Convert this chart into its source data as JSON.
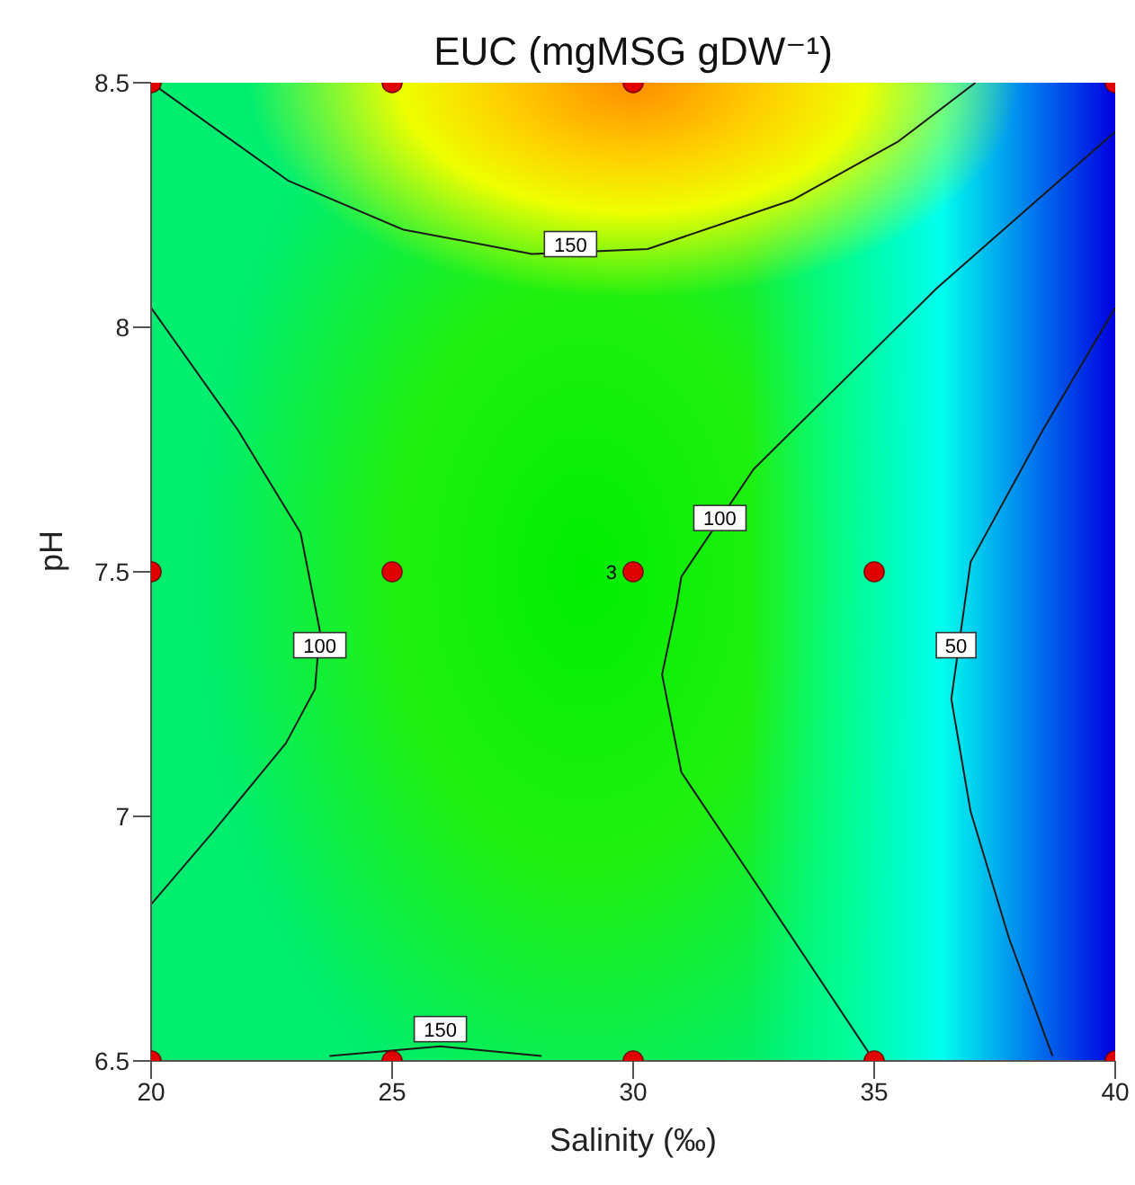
{
  "chart_data": {
    "type": "line",
    "title": "EUC (mgMSG gDW⁻¹)",
    "xlabel": "Salinity (‰)",
    "ylabel": "pH",
    "xlim": [
      20,
      40
    ],
    "ylim": [
      6.5,
      8.5
    ],
    "xticks": [
      20,
      25,
      30,
      35,
      40
    ],
    "yticks": [
      6.5,
      7,
      7.5,
      8,
      8.5
    ],
    "line_style": "solid",
    "series": [
      {
        "color": "#1a1a1a",
        "x": [
          20,
          22.84,
          25.22,
          27.9,
          30.3,
          33.3,
          35.5,
          37.1
        ],
        "values": [
          8.5,
          8.3,
          8.2,
          8.15,
          8.16,
          8.26,
          8.38,
          8.5
        ]
      },
      {
        "color": "#1a1a1a",
        "x": [
          20,
          21.8,
          23.1,
          23.5,
          23.4,
          22.8,
          21.3,
          20
        ],
        "values": [
          8.04,
          7.79,
          7.58,
          7.38,
          7.26,
          7.15,
          6.97,
          6.82
        ]
      },
      {
        "color": "#1a1a1a",
        "x": [
          40,
          36.3,
          32.5,
          31,
          30.9,
          30.6,
          31,
          32.5,
          35
        ],
        "values": [
          8.4,
          8.08,
          7.71,
          7.49,
          7.43,
          7.29,
          7.09,
          6.87,
          6.5
        ]
      },
      {
        "color": "#1a1a1a",
        "x": [
          40,
          38.5,
          37,
          36.6,
          37,
          37.8,
          38.7
        ],
        "values": [
          8.04,
          7.79,
          7.52,
          7.24,
          7.01,
          6.75,
          6.51
        ]
      },
      {
        "color": "#1a1a1a",
        "x": [
          23.7,
          26,
          28.1
        ],
        "values": [
          6.51,
          6.53,
          6.51
        ]
      },
      {
        "type": "scatter",
        "color": "#e00000",
        "marker": "circle",
        "x": [
          20,
          25,
          30,
          40,
          20,
          25,
          30,
          35,
          20,
          25,
          30,
          35,
          40
        ],
        "values": [
          8.5,
          8.5,
          8.5,
          8.5,
          7.5,
          7.5,
          7.5,
          7.5,
          6.5,
          6.5,
          6.5,
          6.5,
          6.5
        ]
      }
    ],
    "annotations": [
      {
        "text": "150",
        "x": 28.7,
        "y": 8.17
      },
      {
        "text": "100",
        "x": 23.5,
        "y": 7.35
      },
      {
        "text": "100",
        "x": 31.8,
        "y": 7.61
      },
      {
        "text": "50",
        "x": 36.7,
        "y": 7.35
      },
      {
        "text": "150",
        "x": 26,
        "y": 6.565
      },
      {
        "text": "3",
        "x": 30,
        "y": 7.5
      }
    ]
  }
}
